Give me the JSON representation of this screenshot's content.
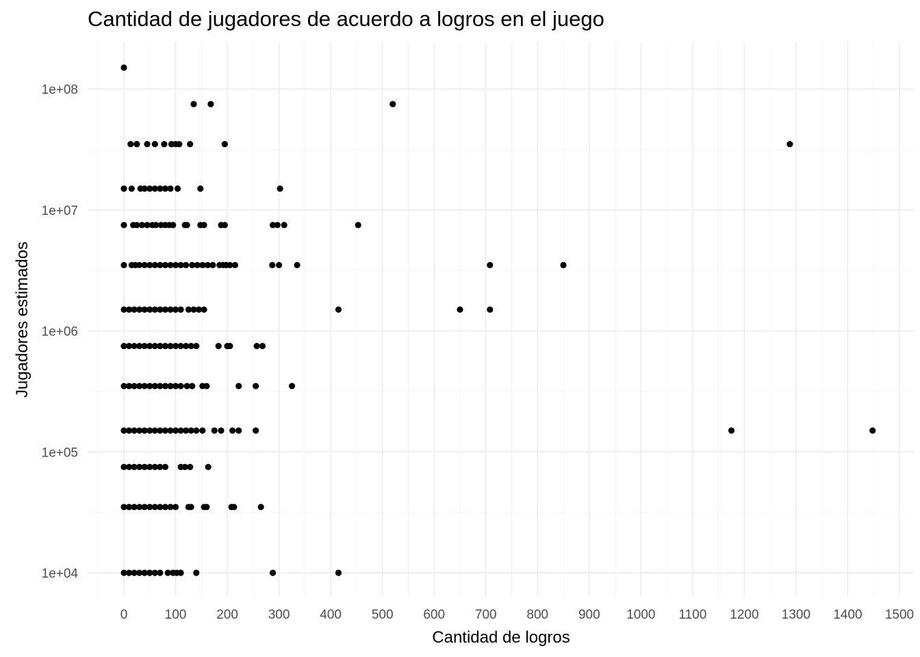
{
  "chart_data": {
    "type": "scatter",
    "title": "Cantidad de jugadores de acuerdo a logros en el juego",
    "xlabel": "Cantidad de logros",
    "ylabel": "Jugadores estimados",
    "x_scale": "linear",
    "y_scale": "log10",
    "xlim": [
      -50,
      1515
    ],
    "ylim": [
      4500,
      200000000
    ],
    "x_ticks": [
      0,
      100,
      200,
      300,
      400,
      500,
      600,
      700,
      800,
      900,
      1000,
      1100,
      1200,
      1300,
      1400,
      1500
    ],
    "x_tick_labels": [
      "0",
      "100",
      "200",
      "300",
      "400",
      "500",
      "600",
      "700",
      "800",
      "900",
      "1000",
      "1100",
      "1200",
      "1300",
      "1400",
      "1500"
    ],
    "y_ticks": [
      10000,
      100000,
      1000000,
      10000000,
      100000000
    ],
    "y_tick_labels": [
      "1e+04",
      "1e+05",
      "1e+06",
      "1e+07",
      "1e+08"
    ],
    "grid": true,
    "point_color": "#000000",
    "series": [
      {
        "points": [
          [
            0,
            150000000
          ],
          [
            135,
            75000000
          ],
          [
            168,
            75000000
          ],
          [
            520,
            75000000
          ],
          [
            13,
            35000000
          ],
          [
            25,
            35000000
          ],
          [
            45,
            35000000
          ],
          [
            60,
            35000000
          ],
          [
            78,
            35000000
          ],
          [
            92,
            35000000
          ],
          [
            100,
            35000000
          ],
          [
            107,
            35000000
          ],
          [
            128,
            35000000
          ],
          [
            195,
            35000000
          ],
          [
            1288,
            35000000
          ],
          [
            0,
            15000000
          ],
          [
            15,
            15000000
          ],
          [
            32,
            15000000
          ],
          [
            40,
            15000000
          ],
          [
            50,
            15000000
          ],
          [
            60,
            15000000
          ],
          [
            70,
            15000000
          ],
          [
            80,
            15000000
          ],
          [
            90,
            15000000
          ],
          [
            104,
            15000000
          ],
          [
            148,
            15000000
          ],
          [
            302,
            15000000
          ],
          [
            0,
            7500000
          ],
          [
            18,
            7500000
          ],
          [
            25,
            7500000
          ],
          [
            35,
            7500000
          ],
          [
            45,
            7500000
          ],
          [
            55,
            7500000
          ],
          [
            62,
            7500000
          ],
          [
            72,
            7500000
          ],
          [
            80,
            7500000
          ],
          [
            88,
            7500000
          ],
          [
            95,
            7500000
          ],
          [
            118,
            7500000
          ],
          [
            122,
            7500000
          ],
          [
            148,
            7500000
          ],
          [
            155,
            7500000
          ],
          [
            188,
            7500000
          ],
          [
            195,
            7500000
          ],
          [
            288,
            7500000
          ],
          [
            297,
            7500000
          ],
          [
            310,
            7500000
          ],
          [
            453,
            7500000
          ],
          [
            0,
            3500000
          ],
          [
            15,
            3500000
          ],
          [
            22,
            3500000
          ],
          [
            30,
            3500000
          ],
          [
            40,
            3500000
          ],
          [
            50,
            3500000
          ],
          [
            60,
            3500000
          ],
          [
            70,
            3500000
          ],
          [
            80,
            3500000
          ],
          [
            90,
            3500000
          ],
          [
            100,
            3500000
          ],
          [
            110,
            3500000
          ],
          [
            120,
            3500000
          ],
          [
            132,
            3500000
          ],
          [
            142,
            3500000
          ],
          [
            152,
            3500000
          ],
          [
            162,
            3500000
          ],
          [
            172,
            3500000
          ],
          [
            185,
            3500000
          ],
          [
            192,
            3500000
          ],
          [
            198,
            3500000
          ],
          [
            205,
            3500000
          ],
          [
            215,
            3500000
          ],
          [
            287,
            3500000
          ],
          [
            300,
            3500000
          ],
          [
            335,
            3500000
          ],
          [
            708,
            3500000
          ],
          [
            850,
            3500000
          ],
          [
            0,
            1500000
          ],
          [
            10,
            1500000
          ],
          [
            20,
            1500000
          ],
          [
            30,
            1500000
          ],
          [
            40,
            1500000
          ],
          [
            50,
            1500000
          ],
          [
            60,
            1500000
          ],
          [
            70,
            1500000
          ],
          [
            80,
            1500000
          ],
          [
            90,
            1500000
          ],
          [
            100,
            1500000
          ],
          [
            110,
            1500000
          ],
          [
            125,
            1500000
          ],
          [
            135,
            1500000
          ],
          [
            145,
            1500000
          ],
          [
            155,
            1500000
          ],
          [
            415,
            1500000
          ],
          [
            650,
            1500000
          ],
          [
            708,
            1500000
          ],
          [
            0,
            750000
          ],
          [
            10,
            750000
          ],
          [
            20,
            750000
          ],
          [
            30,
            750000
          ],
          [
            40,
            750000
          ],
          [
            50,
            750000
          ],
          [
            60,
            750000
          ],
          [
            70,
            750000
          ],
          [
            80,
            750000
          ],
          [
            90,
            750000
          ],
          [
            100,
            750000
          ],
          [
            110,
            750000
          ],
          [
            120,
            750000
          ],
          [
            130,
            750000
          ],
          [
            140,
            750000
          ],
          [
            183,
            750000
          ],
          [
            200,
            750000
          ],
          [
            205,
            750000
          ],
          [
            257,
            750000
          ],
          [
            268,
            750000
          ],
          [
            0,
            350000
          ],
          [
            10,
            350000
          ],
          [
            20,
            350000
          ],
          [
            30,
            350000
          ],
          [
            40,
            350000
          ],
          [
            50,
            350000
          ],
          [
            60,
            350000
          ],
          [
            70,
            350000
          ],
          [
            80,
            350000
          ],
          [
            90,
            350000
          ],
          [
            100,
            350000
          ],
          [
            110,
            350000
          ],
          [
            122,
            350000
          ],
          [
            132,
            350000
          ],
          [
            152,
            350000
          ],
          [
            160,
            350000
          ],
          [
            222,
            350000
          ],
          [
            255,
            350000
          ],
          [
            325,
            350000
          ],
          [
            0,
            150000
          ],
          [
            10,
            150000
          ],
          [
            20,
            150000
          ],
          [
            30,
            150000
          ],
          [
            40,
            150000
          ],
          [
            50,
            150000
          ],
          [
            60,
            150000
          ],
          [
            70,
            150000
          ],
          [
            80,
            150000
          ],
          [
            90,
            150000
          ],
          [
            100,
            150000
          ],
          [
            110,
            150000
          ],
          [
            120,
            150000
          ],
          [
            130,
            150000
          ],
          [
            140,
            150000
          ],
          [
            152,
            150000
          ],
          [
            175,
            150000
          ],
          [
            188,
            150000
          ],
          [
            210,
            150000
          ],
          [
            222,
            150000
          ],
          [
            255,
            150000
          ],
          [
            1175,
            150000
          ],
          [
            1448,
            150000
          ],
          [
            0,
            75000
          ],
          [
            10,
            75000
          ],
          [
            20,
            75000
          ],
          [
            30,
            75000
          ],
          [
            40,
            75000
          ],
          [
            50,
            75000
          ],
          [
            60,
            75000
          ],
          [
            70,
            75000
          ],
          [
            80,
            75000
          ],
          [
            110,
            75000
          ],
          [
            118,
            75000
          ],
          [
            128,
            75000
          ],
          [
            163,
            75000
          ],
          [
            0,
            35000
          ],
          [
            10,
            35000
          ],
          [
            20,
            35000
          ],
          [
            30,
            35000
          ],
          [
            40,
            35000
          ],
          [
            50,
            35000
          ],
          [
            60,
            35000
          ],
          [
            70,
            35000
          ],
          [
            80,
            35000
          ],
          [
            90,
            35000
          ],
          [
            100,
            35000
          ],
          [
            125,
            35000
          ],
          [
            130,
            35000
          ],
          [
            155,
            35000
          ],
          [
            160,
            35000
          ],
          [
            208,
            35000
          ],
          [
            213,
            35000
          ],
          [
            265,
            35000
          ],
          [
            0,
            10000
          ],
          [
            10,
            10000
          ],
          [
            20,
            10000
          ],
          [
            30,
            10000
          ],
          [
            40,
            10000
          ],
          [
            50,
            10000
          ],
          [
            60,
            10000
          ],
          [
            70,
            10000
          ],
          [
            85,
            10000
          ],
          [
            95,
            10000
          ],
          [
            102,
            10000
          ],
          [
            110,
            10000
          ],
          [
            140,
            10000
          ],
          [
            288,
            10000
          ],
          [
            415,
            10000
          ]
        ]
      }
    ]
  }
}
